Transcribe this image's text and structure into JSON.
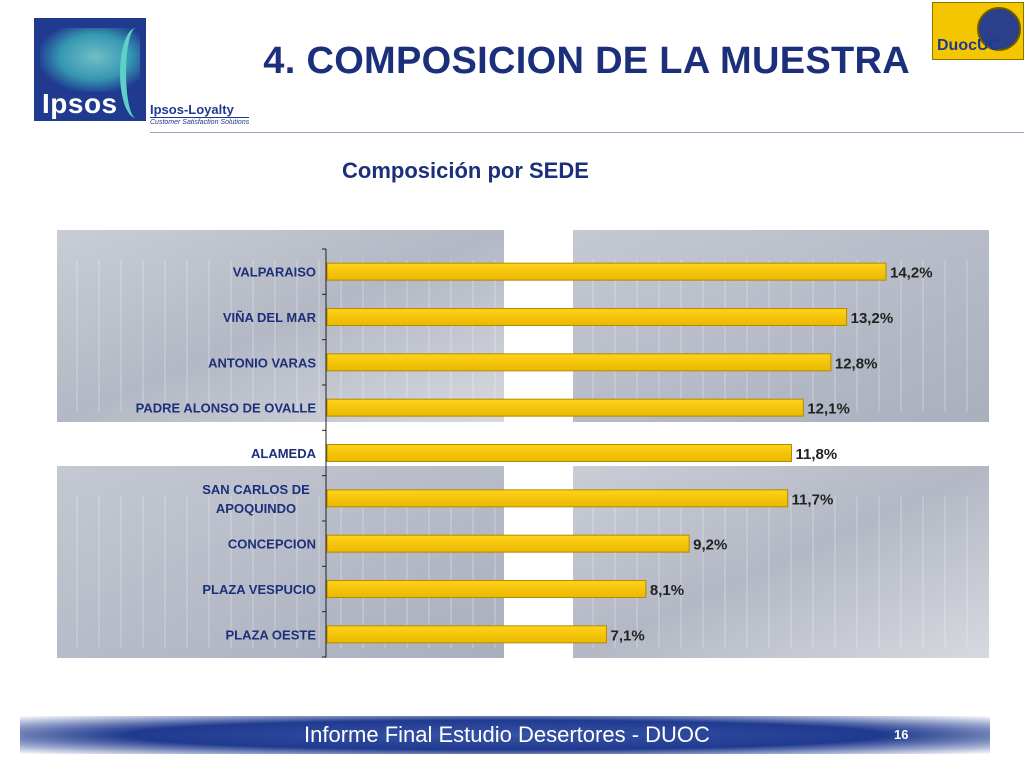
{
  "header": {
    "title": "4. COMPOSICION DE LA MUESTRA",
    "logo_brand": "Ipsos",
    "logo_sub": "Ipsos-Loyalty",
    "logo_tag": "Customer Satisfaction Solutions",
    "duoc_logo": "DuocUC"
  },
  "subtitle": "Composición por SEDE",
  "footer": {
    "title": "Informe Final Estudio Desertores - DUOC",
    "page": "16"
  },
  "colors": {
    "bar": "#f7c600",
    "bar_border": "#b58b00",
    "title": "#1c2f7a",
    "footer": "#1f3a8f"
  },
  "chart_data": {
    "type": "bar",
    "orientation": "horizontal",
    "title": "Composición por SEDE",
    "categories": [
      "VALPARAISO",
      "VIÑA DEL MAR",
      "ANTONIO VARAS",
      "PADRE ALONSO DE OVALLE",
      "ALAMEDA",
      "SAN CARLOS DE APOQUINDO",
      "CONCEPCION",
      "PLAZA VESPUCIO",
      "PLAZA OESTE"
    ],
    "category_lines": [
      [
        "VALPARAISO"
      ],
      [
        "VIÑA DEL MAR"
      ],
      [
        "ANTONIO VARAS"
      ],
      [
        "PADRE ALONSO DE OVALLE"
      ],
      [
        "ALAMEDA"
      ],
      [
        "SAN CARLOS DE",
        "APOQUINDO"
      ],
      [
        "CONCEPCION"
      ],
      [
        "PLAZA VESPUCIO"
      ],
      [
        "PLAZA OESTE"
      ]
    ],
    "values": [
      14.2,
      13.2,
      12.8,
      12.1,
      11.8,
      11.7,
      9.2,
      8.1,
      7.1
    ],
    "data_labels": [
      "14,2%",
      "13,2%",
      "12,8%",
      "12,1%",
      "11,8%",
      "11,7%",
      "9,2%",
      "8,1%",
      "7,1%"
    ],
    "xlim": [
      0,
      15
    ],
    "unit": "%",
    "grid": false,
    "legend": "none"
  }
}
